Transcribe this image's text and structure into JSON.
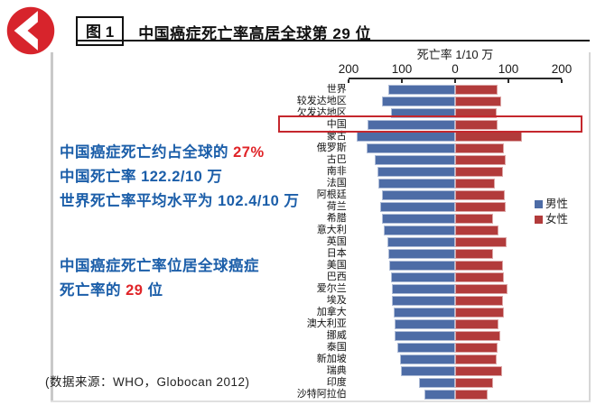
{
  "header": {
    "figure_label": "图 1",
    "title": "中国癌症死亡率高居全球第 29 位",
    "logo_color": "#d7242c"
  },
  "annotations": {
    "line1_prefix": "中国癌症死亡约占全球的 ",
    "line1_highlight": "27%",
    "line2": "中国死亡率 122.2/10 万",
    "line3": "世界死亡率平均水平为 102.4/10 万",
    "line4": "中国癌症死亡率位居全球癌症",
    "line5_prefix": "死亡率的 ",
    "line5_highlight": "29",
    "line5_suffix": " 位",
    "source": "(数据来源：WHO，Globocan 2012)"
  },
  "chart_data": {
    "type": "bar",
    "variant": "diverging-horizontal",
    "axis_title": "死亡率 1/10 万",
    "axis_ticks": [
      "200",
      "100",
      "0",
      "100",
      "200"
    ],
    "tick_positions_pct": [
      0,
      25,
      50,
      75,
      100
    ],
    "scale_max_each_side": 200,
    "grid": false,
    "legend_position": "right",
    "highlighted_category": "中国",
    "highlight_color": "#c5272d",
    "categories": [
      "世界",
      "较发达地区",
      "欠发达地区",
      "中国",
      "蒙古",
      "俄罗斯",
      "古巴",
      "南非",
      "法国",
      "阿根廷",
      "荷兰",
      "希腊",
      "意大利",
      "英国",
      "日本",
      "美国",
      "巴西",
      "爱尔兰",
      "埃及",
      "加拿大",
      "澳大利亚",
      "挪威",
      "泰国",
      "新加坡",
      "瑞典",
      "印度",
      "沙特阿拉伯"
    ],
    "series": [
      {
        "name": "男性",
        "side": "left",
        "color": "#4d6ca6",
        "values": [
          127,
          139,
          122,
          166,
          186,
          168,
          152,
          147,
          146,
          139,
          141,
          138,
          135,
          128,
          126,
          125,
          122,
          120,
          119,
          116,
          115,
          114,
          109,
          105,
          102,
          69,
          58
        ]
      },
      {
        "name": "女性",
        "side": "right",
        "color": "#b23b3b",
        "values": [
          80,
          86,
          78,
          80,
          126,
          91,
          94,
          90,
          75,
          93,
          94,
          71,
          81,
          97,
          70,
          90,
          91,
          98,
          90,
          91,
          81,
          84,
          80,
          77,
          88,
          70,
          60
        ]
      }
    ],
    "legend": [
      {
        "label": "男性",
        "color": "#4d6ca6"
      },
      {
        "label": "女性",
        "color": "#b23b3b"
      }
    ]
  }
}
